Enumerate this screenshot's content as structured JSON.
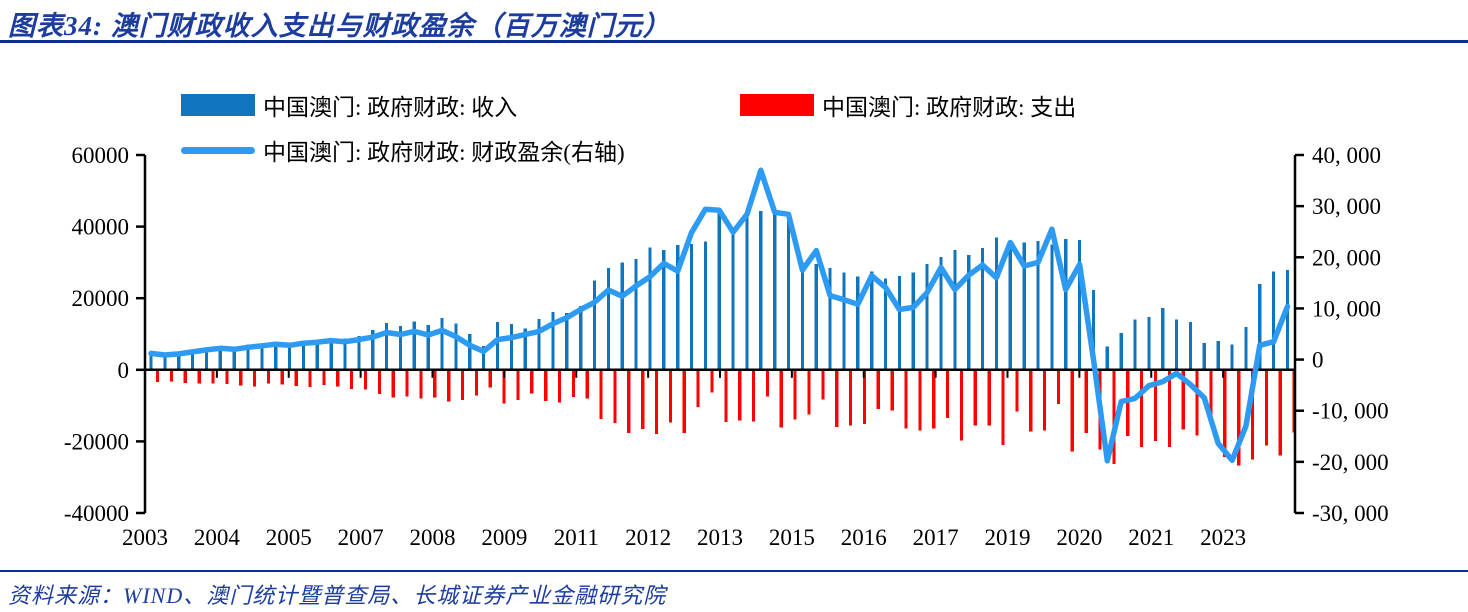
{
  "title": "图表34:  澳门财政收入支出与财政盈余（百万澳门元）",
  "source": "资料来源：WIND、澳门统计暨普查局、长城证券产业金融研究院",
  "colors": {
    "title_navy": "#1c3d9e",
    "rule_navy": "#0b2f8e",
    "revenue_blue": "#1175be",
    "expenditure_red": "#fe0000",
    "surplus_azure": "#2d9bf3",
    "axis_black": "#000000"
  },
  "legend": [
    {
      "label": "中国澳门: 政府财政: 收入",
      "swatch": "bar",
      "color": "#1175be"
    },
    {
      "label": "中国澳门: 政府财政: 支出",
      "swatch": "bar",
      "color": "#fe0000"
    },
    {
      "label": "中国澳门: 政府财政: 财政盈余(右轴)",
      "swatch": "line",
      "color": "#2d9bf3"
    }
  ],
  "chart_data": {
    "type": "bar",
    "subtype": "clustered-bars-with-line",
    "x_unit": "quarter",
    "x_start": "2003Q1",
    "x_end": "2023Q3",
    "n_points": 83,
    "grid": false,
    "x_tick_labels": [
      "2003",
      "2004",
      "2005",
      "2007",
      "2008",
      "2009",
      "2011",
      "2012",
      "2013",
      "2015",
      "2016",
      "2017",
      "2019",
      "2020",
      "2021",
      "2023"
    ],
    "left_axis": {
      "range": [
        -40000,
        60000
      ],
      "tick_labels": [
        "60000",
        "40000",
        "20000",
        "0",
        "-20000",
        "-40000"
      ],
      "tick_values": [
        60000,
        40000,
        20000,
        0,
        -20000,
        -40000
      ]
    },
    "right_axis": {
      "range": [
        -30000,
        40000
      ],
      "tick_labels": [
        "40, 000",
        "30, 000",
        "20, 000",
        "10, 000",
        "0",
        "-10, 000",
        "-20, 000",
        "-30, 000"
      ],
      "tick_values": [
        40000,
        30000,
        20000,
        10000,
        0,
        -10000,
        -20000,
        -30000
      ]
    },
    "series": [
      {
        "name": "中国澳门: 政府财政: 收入",
        "type": "bar",
        "axis": "left",
        "color": "#1175be",
        "values": [
          4600,
          4200,
          4800,
          5300,
          5700,
          6100,
          6400,
          7000,
          6500,
          7100,
          7300,
          8000,
          7700,
          8400,
          8800,
          9400,
          11100,
          13100,
          12300,
          13500,
          12500,
          14500,
          13000,
          10000,
          6600,
          13300,
          12800,
          11500,
          14200,
          16200,
          15800,
          17800,
          25000,
          28500,
          30000,
          31000,
          34200,
          33500,
          34900,
          35200,
          35800,
          43800,
          39100,
          42800,
          44400,
          44900,
          42300,
          30000,
          29600,
          28500,
          27200,
          26000,
          27400,
          25500,
          26200,
          27200,
          29500,
          31500,
          33500,
          32000,
          34000,
          37000,
          34500,
          35500,
          36000,
          35000,
          36500,
          36300,
          22300,
          6500,
          10300,
          14000,
          14800,
          17300,
          14000,
          13400,
          7500,
          8000,
          7000,
          12000,
          24000,
          27400,
          27900
        ]
      },
      {
        "name": "中国澳门: 政府财政: 支出",
        "type": "bar",
        "axis": "left",
        "color": "#fe0000",
        "values": [
          -3400,
          -3300,
          -3700,
          -3800,
          -3800,
          -3900,
          -4400,
          -4600,
          -3800,
          -4100,
          -4500,
          -4800,
          -4300,
          -4700,
          -5300,
          -5500,
          -6700,
          -7800,
          -7400,
          -8000,
          -7700,
          -8800,
          -8500,
          -7200,
          -5000,
          -9400,
          -8500,
          -6600,
          -8700,
          -9200,
          -7600,
          -8000,
          -13800,
          -14900,
          -17600,
          -16600,
          -18000,
          -14700,
          -17600,
          -10400,
          -6400,
          -14600,
          -14200,
          -14400,
          -7400,
          -16100,
          -13900,
          -12500,
          -8300,
          -16000,
          -15500,
          -15200,
          -11000,
          -11400,
          -16400,
          -17000,
          -16400,
          -13500,
          -19800,
          -15500,
          -15500,
          -21000,
          -11600,
          -17200,
          -17000,
          -9500,
          -22800,
          -17700,
          -22300,
          -26300,
          -18500,
          -21600,
          -19900,
          -21600,
          -16700,
          -18300,
          -15000,
          -24400,
          -26700,
          -25000,
          -21200,
          -23900,
          -17500
        ]
      },
      {
        "name": "中国澳门: 政府财政: 财政盈余(右轴)",
        "type": "line",
        "axis": "right",
        "color": "#2d9bf3",
        "values": [
          1200,
          900,
          1100,
          1500,
          1900,
          2200,
          2000,
          2400,
          2700,
          3000,
          2800,
          3200,
          3400,
          3700,
          3500,
          3900,
          4400,
          5300,
          4900,
          5500,
          4800,
          5700,
          4500,
          2800,
          1600,
          3900,
          4300,
          4900,
          5500,
          7000,
          8200,
          9800,
          11200,
          13600,
          12400,
          14400,
          16200,
          18800,
          17300,
          24800,
          29400,
          29200,
          24900,
          28400,
          37000,
          28800,
          28400,
          17500,
          21300,
          12500,
          11700,
          10800,
          16400,
          14100,
          9800,
          10200,
          13100,
          18000,
          13700,
          16500,
          18500,
          16000,
          22900,
          18300,
          19000,
          25500,
          13700,
          18600,
          0,
          -19800,
          -8200,
          -7600,
          -5100,
          -4300,
          -2700,
          -4900,
          -7500,
          -16400,
          -19700,
          -13000,
          2800,
          3500,
          10400
        ]
      }
    ]
  }
}
